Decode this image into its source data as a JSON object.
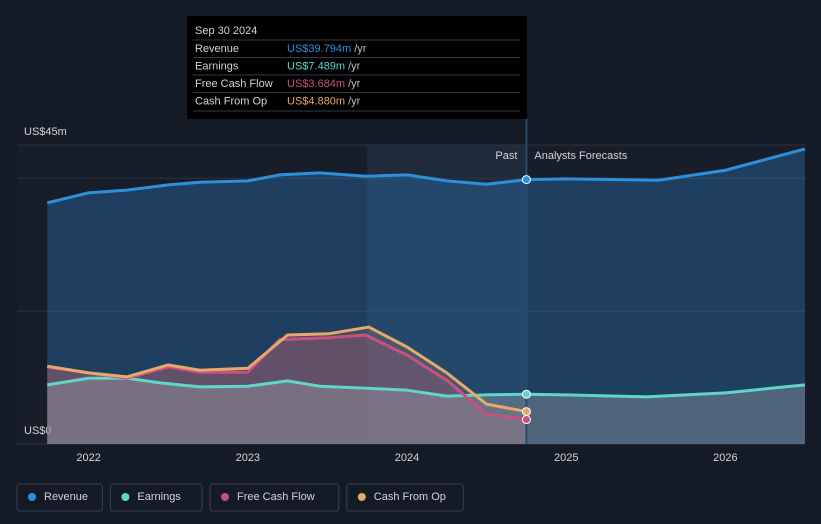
{
  "chart_data": {
    "type": "line",
    "xlim": [
      2021.55,
      2026.5
    ],
    "xticks": [
      2022,
      2023,
      2024,
      2025,
      2026
    ],
    "ylim": [
      0,
      45
    ],
    "yticks": [
      {
        "value": 0,
        "label": "US$0"
      },
      {
        "value": 45,
        "label": "US$45m"
      }
    ],
    "ygrid": [
      20,
      40
    ],
    "highlight_start": 2023.75,
    "forecast_start": 2024.75,
    "past_label": "Past",
    "forecast_label": "Analysts Forecasts",
    "series": [
      {
        "name": "Revenue",
        "color": "#2e8fdd",
        "x": [
          2021.74,
          2022,
          2022.24,
          2022.5,
          2022.7,
          2023,
          2023.2,
          2023.45,
          2023.74,
          2024,
          2024.25,
          2024.5,
          2024.75,
          2025,
          2025.58,
          2026,
          2026.5
        ],
        "values": [
          36.3,
          37.8,
          38.2,
          39.0,
          39.4,
          39.6,
          40.5,
          40.8,
          40.3,
          40.5,
          39.6,
          39.1,
          39.794,
          39.9,
          39.7,
          41.2,
          44.4
        ]
      },
      {
        "name": "Earnings",
        "color": "#5fd6c8",
        "x": [
          2021.74,
          2022,
          2022.24,
          2022.45,
          2022.7,
          2023,
          2023.25,
          2023.45,
          2023.74,
          2024,
          2024.25,
          2024.5,
          2024.75,
          2025,
          2025.5,
          2026,
          2026.5
        ],
        "values": [
          8.9,
          9.9,
          9.9,
          9.2,
          8.6,
          8.7,
          9.5,
          8.7,
          8.4,
          8.1,
          7.2,
          7.4,
          7.489,
          7.4,
          7.1,
          7.7,
          8.9
        ]
      },
      {
        "name": "Free Cash Flow",
        "color": "#c9507f",
        "x": [
          2021.74,
          2022,
          2022.24,
          2022.5,
          2022.7,
          2023,
          2023.2,
          2023.51,
          2023.74,
          2024,
          2024.25,
          2024.5,
          2024.75
        ],
        "values": [
          11.6,
          10.7,
          9.9,
          11.6,
          10.8,
          10.8,
          15.7,
          16.0,
          16.4,
          13.4,
          9.6,
          4.5,
          3.684
        ]
      },
      {
        "name": "Cash From Op",
        "color": "#e6a96b",
        "x": [
          2021.74,
          2022,
          2022.24,
          2022.5,
          2022.7,
          2023,
          2023.25,
          2023.51,
          2023.76,
          2024,
          2024.25,
          2024.5,
          2024.75
        ],
        "values": [
          11.7,
          10.7,
          10.1,
          11.9,
          11.1,
          11.4,
          16.4,
          16.6,
          17.6,
          14.6,
          10.7,
          6.0,
          4.88
        ]
      }
    ],
    "tooltip": {
      "title": "Sep 30 2024",
      "rows": [
        {
          "name": "Revenue",
          "value": "US$39.794m",
          "unit": "/yr"
        },
        {
          "name": "Earnings",
          "value": "US$7.489m",
          "unit": "/yr"
        },
        {
          "name": "Free Cash Flow",
          "value": "US$3.684m",
          "unit": "/yr"
        },
        {
          "name": "Cash From Op",
          "value": "US$4.880m",
          "unit": "/yr"
        }
      ]
    }
  }
}
